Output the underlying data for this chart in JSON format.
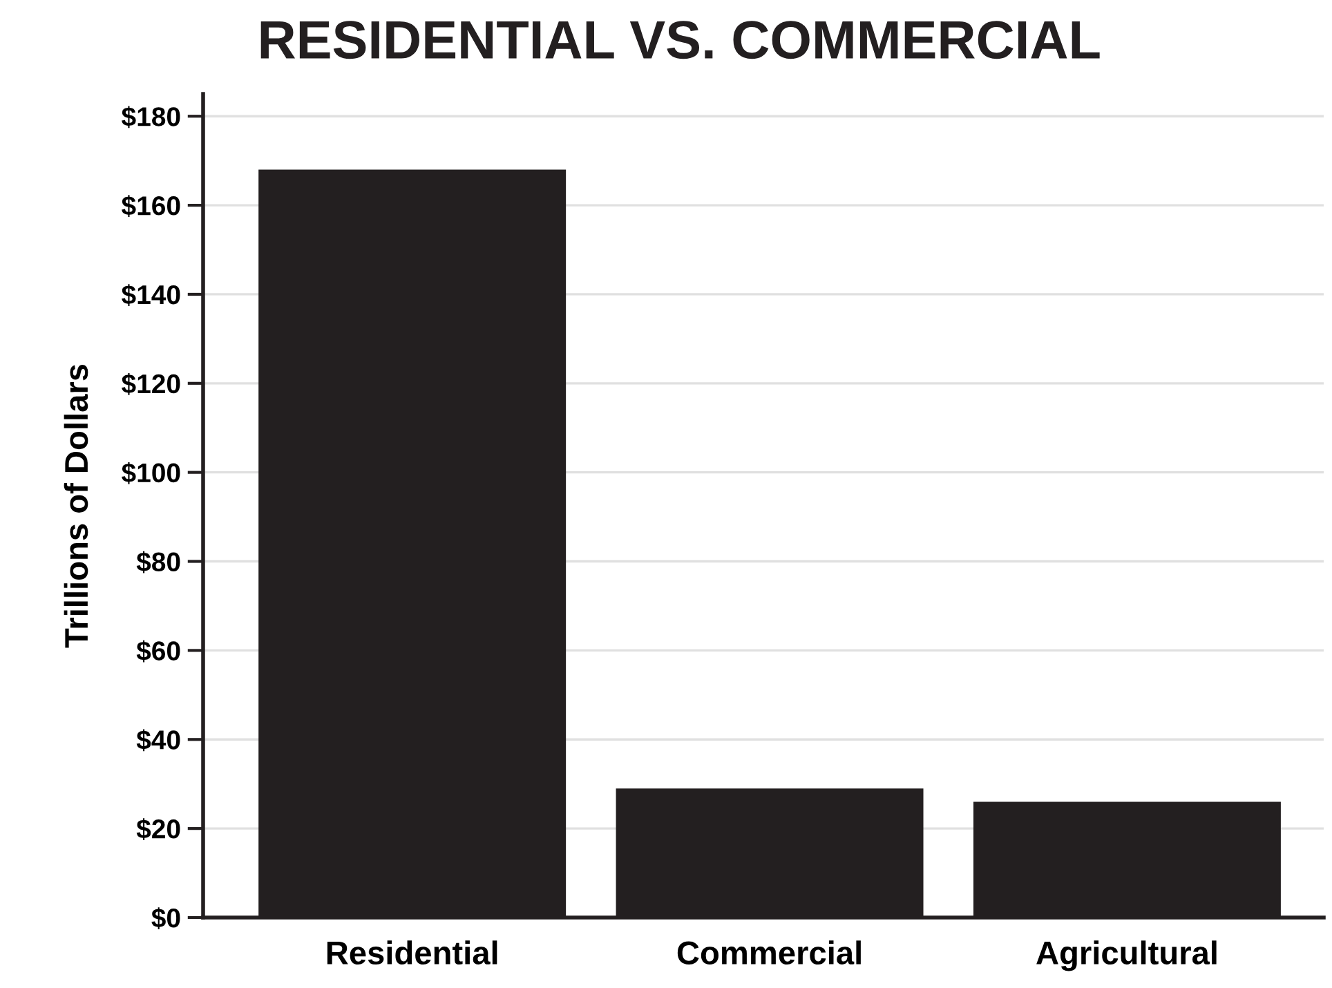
{
  "chart_data": {
    "type": "bar",
    "title": "RESIDENTIAL VS. COMMERCIAL",
    "ylabel": "Trillions of Dollars",
    "categories": [
      "Residential",
      "Commercial",
      "Agricultural"
    ],
    "values": [
      168,
      29,
      26
    ],
    "color": "#231f20",
    "ylim": [
      0,
      185
    ],
    "yticks": [
      {
        "value": 0,
        "label": "$0"
      },
      {
        "value": 20,
        "label": "$20"
      },
      {
        "value": 40,
        "label": "$40"
      },
      {
        "value": 60,
        "label": "$60"
      },
      {
        "value": 80,
        "label": "$80"
      },
      {
        "value": 100,
        "label": "$100"
      },
      {
        "value": 120,
        "label": "$120"
      },
      {
        "value": 140,
        "label": "$140"
      },
      {
        "value": 160,
        "label": "$160"
      },
      {
        "value": 180,
        "label": "$180"
      }
    ],
    "grid": "y"
  }
}
